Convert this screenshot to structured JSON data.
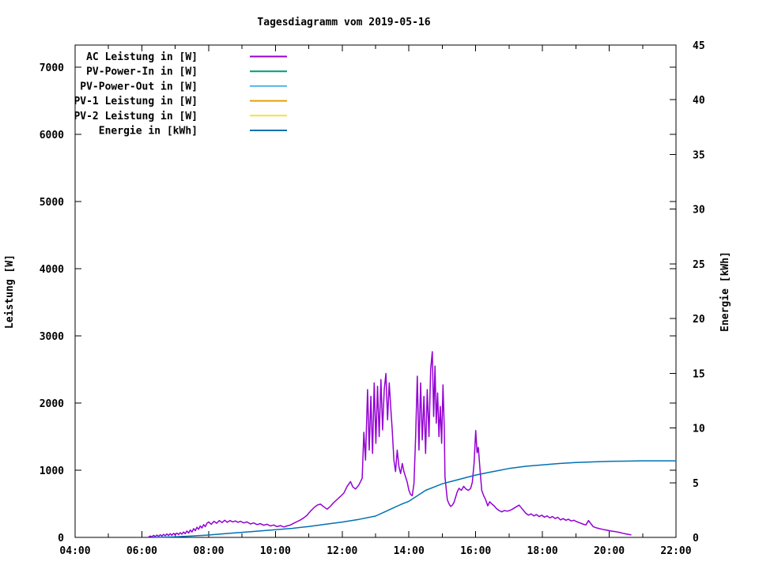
{
  "title": "Tagesdiagramm vom 2019-05-16",
  "colors": {
    "background": "#ffffff",
    "frame": "#000000",
    "text": "#000000",
    "ac_leistung": "#9400d3",
    "pv_power_in": "#009e73",
    "pv_power_out": "#56b4e9",
    "pv1_leistung": "#e69f00",
    "pv2_leistung": "#f0e442",
    "energie": "#0072b2"
  },
  "axes": {
    "x": {
      "range_hours": [
        4,
        22
      ],
      "tick_hours": [
        4,
        6,
        8,
        10,
        12,
        14,
        16,
        18,
        20,
        22
      ],
      "tick_labels": [
        "04:00",
        "06:00",
        "08:00",
        "10:00",
        "12:00",
        "14:00",
        "16:00",
        "18:00",
        "20:00",
        "22:00"
      ],
      "minor_hours": [
        5,
        7,
        9,
        11,
        13,
        15,
        17,
        19,
        21
      ]
    },
    "y_left": {
      "label": "Leistung [W]",
      "tick_values": [
        0,
        1000,
        2000,
        3000,
        4000,
        5000,
        6000,
        7000
      ],
      "max": 7329
    },
    "y_right": {
      "label": "Energie [kWh]",
      "tick_values": [
        0,
        5,
        10,
        15,
        20,
        25,
        30,
        35,
        40,
        45
      ],
      "max": 45
    }
  },
  "chart_data": {
    "type": "line",
    "title": "Tagesdiagramm vom 2019-05-16",
    "xlabel": "",
    "ylabel_left": "Leistung [W]",
    "ylabel_right": "Energie [kWh]",
    "x_unit": "hour-of-day",
    "xlim_hours": [
      4,
      22
    ],
    "ylim_left": [
      0,
      7329
    ],
    "ylim_right": [
      0,
      45
    ],
    "grid": "off",
    "legend_position": "top-left-inside",
    "series": [
      {
        "name": "AC Leistung in [W]",
        "color": "#9400d3",
        "axis": "left",
        "unit": "W",
        "points": [
          [
            6.2,
            5
          ],
          [
            6.25,
            20
          ],
          [
            6.3,
            8
          ],
          [
            6.35,
            30
          ],
          [
            6.4,
            12
          ],
          [
            6.45,
            35
          ],
          [
            6.5,
            15
          ],
          [
            6.55,
            40
          ],
          [
            6.6,
            20
          ],
          [
            6.65,
            45
          ],
          [
            6.7,
            25
          ],
          [
            6.75,
            50
          ],
          [
            6.8,
            28
          ],
          [
            6.85,
            55
          ],
          [
            6.9,
            32
          ],
          [
            6.95,
            60
          ],
          [
            7.0,
            38
          ],
          [
            7.05,
            65
          ],
          [
            7.1,
            42
          ],
          [
            7.15,
            70
          ],
          [
            7.2,
            48
          ],
          [
            7.25,
            80
          ],
          [
            7.3,
            55
          ],
          [
            7.35,
            95
          ],
          [
            7.4,
            65
          ],
          [
            7.45,
            110
          ],
          [
            7.5,
            80
          ],
          [
            7.55,
            130
          ],
          [
            7.6,
            100
          ],
          [
            7.65,
            150
          ],
          [
            7.7,
            120
          ],
          [
            7.75,
            170
          ],
          [
            7.8,
            140
          ],
          [
            7.85,
            190
          ],
          [
            7.9,
            160
          ],
          [
            7.95,
            210
          ],
          [
            8.0,
            230
          ],
          [
            8.08,
            195
          ],
          [
            8.16,
            240
          ],
          [
            8.24,
            210
          ],
          [
            8.32,
            250
          ],
          [
            8.4,
            220
          ],
          [
            8.48,
            255
          ],
          [
            8.56,
            225
          ],
          [
            8.64,
            250
          ],
          [
            8.72,
            230
          ],
          [
            8.8,
            245
          ],
          [
            8.88,
            225
          ],
          [
            8.96,
            240
          ],
          [
            9.05,
            215
          ],
          [
            9.15,
            230
          ],
          [
            9.25,
            200
          ],
          [
            9.35,
            215
          ],
          [
            9.45,
            190
          ],
          [
            9.55,
            205
          ],
          [
            9.65,
            180
          ],
          [
            9.75,
            195
          ],
          [
            9.85,
            170
          ],
          [
            9.95,
            185
          ],
          [
            10.05,
            160
          ],
          [
            10.15,
            175
          ],
          [
            10.25,
            155
          ],
          [
            10.35,
            170
          ],
          [
            10.45,
            185
          ],
          [
            10.55,
            210
          ],
          [
            10.65,
            235
          ],
          [
            10.75,
            260
          ],
          [
            10.85,
            290
          ],
          [
            10.95,
            330
          ],
          [
            11.05,
            390
          ],
          [
            11.15,
            440
          ],
          [
            11.25,
            480
          ],
          [
            11.35,
            495
          ],
          [
            11.45,
            455
          ],
          [
            11.55,
            420
          ],
          [
            11.65,
            465
          ],
          [
            11.75,
            520
          ],
          [
            11.85,
            565
          ],
          [
            11.95,
            610
          ],
          [
            12.05,
            660
          ],
          [
            12.15,
            760
          ],
          [
            12.25,
            830
          ],
          [
            12.32,
            750
          ],
          [
            12.4,
            720
          ],
          [
            12.5,
            780
          ],
          [
            12.6,
            880
          ],
          [
            12.65,
            1565
          ],
          [
            12.7,
            1150
          ],
          [
            12.76,
            2200
          ],
          [
            12.81,
            1300
          ],
          [
            12.86,
            2100
          ],
          [
            12.91,
            1250
          ],
          [
            12.96,
            2300
          ],
          [
            13.01,
            1400
          ],
          [
            13.06,
            2250
          ],
          [
            13.11,
            1500
          ],
          [
            13.16,
            2350
          ],
          [
            13.21,
            1600
          ],
          [
            13.26,
            2200
          ],
          [
            13.31,
            2440
          ],
          [
            13.36,
            1750
          ],
          [
            13.41,
            2300
          ],
          [
            13.46,
            1900
          ],
          [
            13.5,
            1600
          ],
          [
            13.55,
            1150
          ],
          [
            13.6,
            980
          ],
          [
            13.65,
            1300
          ],
          [
            13.7,
            1050
          ],
          [
            13.75,
            950
          ],
          [
            13.8,
            1100
          ],
          [
            13.85,
            980
          ],
          [
            13.9,
            900
          ],
          [
            13.95,
            820
          ],
          [
            14.0,
            700
          ],
          [
            14.05,
            640
          ],
          [
            14.1,
            620
          ],
          [
            14.15,
            800
          ],
          [
            14.2,
            1500
          ],
          [
            14.25,
            2400
          ],
          [
            14.3,
            1300
          ],
          [
            14.35,
            2300
          ],
          [
            14.4,
            1450
          ],
          [
            14.45,
            2100
          ],
          [
            14.5,
            1250
          ],
          [
            14.55,
            2200
          ],
          [
            14.6,
            1500
          ],
          [
            14.65,
            2500
          ],
          [
            14.7,
            2765
          ],
          [
            14.74,
            1800
          ],
          [
            14.78,
            2550
          ],
          [
            14.82,
            1700
          ],
          [
            14.86,
            2150
          ],
          [
            14.9,
            1500
          ],
          [
            14.94,
            1950
          ],
          [
            14.98,
            1400
          ],
          [
            15.02,
            2270
          ],
          [
            15.06,
            1600
          ],
          [
            15.08,
            900
          ],
          [
            15.15,
            560
          ],
          [
            15.2,
            500
          ],
          [
            15.25,
            460
          ],
          [
            15.3,
            480
          ],
          [
            15.35,
            520
          ],
          [
            15.4,
            600
          ],
          [
            15.45,
            680
          ],
          [
            15.5,
            730
          ],
          [
            15.57,
            700
          ],
          [
            15.64,
            760
          ],
          [
            15.71,
            720
          ],
          [
            15.78,
            700
          ],
          [
            15.85,
            730
          ],
          [
            15.9,
            820
          ],
          [
            15.95,
            1100
          ],
          [
            16.0,
            1590
          ],
          [
            16.04,
            1260
          ],
          [
            16.08,
            1340
          ],
          [
            16.13,
            1000
          ],
          [
            16.18,
            700
          ],
          [
            16.24,
            620
          ],
          [
            16.3,
            560
          ],
          [
            16.36,
            470
          ],
          [
            16.42,
            530
          ],
          [
            16.48,
            500
          ],
          [
            16.55,
            470
          ],
          [
            16.62,
            430
          ],
          [
            16.7,
            400
          ],
          [
            16.78,
            380
          ],
          [
            16.86,
            400
          ],
          [
            16.94,
            390
          ],
          [
            17.02,
            400
          ],
          [
            17.1,
            420
          ],
          [
            17.2,
            450
          ],
          [
            17.3,
            480
          ],
          [
            17.4,
            420
          ],
          [
            17.5,
            360
          ],
          [
            17.58,
            330
          ],
          [
            17.66,
            350
          ],
          [
            17.74,
            320
          ],
          [
            17.82,
            340
          ],
          [
            17.9,
            310
          ],
          [
            17.98,
            330
          ],
          [
            18.06,
            300
          ],
          [
            18.14,
            320
          ],
          [
            18.22,
            290
          ],
          [
            18.3,
            310
          ],
          [
            18.38,
            280
          ],
          [
            18.46,
            300
          ],
          [
            18.54,
            260
          ],
          [
            18.62,
            280
          ],
          [
            18.7,
            255
          ],
          [
            18.78,
            270
          ],
          [
            18.86,
            245
          ],
          [
            18.94,
            255
          ],
          [
            19.02,
            235
          ],
          [
            19.1,
            220
          ],
          [
            19.2,
            200
          ],
          [
            19.3,
            185
          ],
          [
            19.38,
            250
          ],
          [
            19.44,
            210
          ],
          [
            19.52,
            160
          ],
          [
            19.6,
            145
          ],
          [
            19.7,
            130
          ],
          [
            19.8,
            120
          ],
          [
            19.9,
            110
          ],
          [
            20.0,
            100
          ],
          [
            20.1,
            92
          ],
          [
            20.2,
            85
          ],
          [
            20.3,
            75
          ],
          [
            20.4,
            62
          ],
          [
            20.5,
            52
          ],
          [
            20.6,
            42
          ],
          [
            20.65,
            38
          ]
        ]
      },
      {
        "name": "PV-Power-In in [W]",
        "color": "#009e73",
        "axis": "left",
        "unit": "W",
        "points": []
      },
      {
        "name": "PV-Power-Out in [W]",
        "color": "#56b4e9",
        "axis": "left",
        "unit": "W",
        "points": []
      },
      {
        "name": "PV-1 Leistung in [W]",
        "color": "#e69f00",
        "axis": "left",
        "unit": "W",
        "points": []
      },
      {
        "name": "PV-2 Leistung in [W]",
        "color": "#f0e442",
        "axis": "left",
        "unit": "W",
        "points": []
      },
      {
        "name": "Energie in [kWh]",
        "color": "#0072b2",
        "axis": "right",
        "unit": "kWh",
        "points": [
          [
            6.3,
            0.0
          ],
          [
            6.6,
            0.02
          ],
          [
            7.0,
            0.05
          ],
          [
            7.5,
            0.12
          ],
          [
            8.0,
            0.22
          ],
          [
            8.5,
            0.34
          ],
          [
            9.0,
            0.46
          ],
          [
            9.5,
            0.58
          ],
          [
            10.0,
            0.7
          ],
          [
            10.5,
            0.82
          ],
          [
            11.0,
            1.0
          ],
          [
            11.5,
            1.2
          ],
          [
            12.0,
            1.4
          ],
          [
            12.5,
            1.65
          ],
          [
            13.0,
            1.95
          ],
          [
            13.25,
            2.3
          ],
          [
            13.5,
            2.65
          ],
          [
            13.75,
            3.0
          ],
          [
            14.0,
            3.3
          ],
          [
            14.25,
            3.8
          ],
          [
            14.5,
            4.3
          ],
          [
            14.75,
            4.6
          ],
          [
            15.0,
            4.9
          ],
          [
            15.25,
            5.1
          ],
          [
            15.5,
            5.3
          ],
          [
            15.75,
            5.5
          ],
          [
            16.0,
            5.7
          ],
          [
            16.5,
            6.0
          ],
          [
            17.0,
            6.3
          ],
          [
            17.5,
            6.5
          ],
          [
            18.0,
            6.62
          ],
          [
            18.5,
            6.75
          ],
          [
            19.0,
            6.85
          ],
          [
            19.5,
            6.9
          ],
          [
            20.0,
            6.95
          ],
          [
            20.5,
            6.97
          ],
          [
            21.0,
            7.0
          ],
          [
            22.0,
            7.0
          ]
        ]
      }
    ]
  }
}
